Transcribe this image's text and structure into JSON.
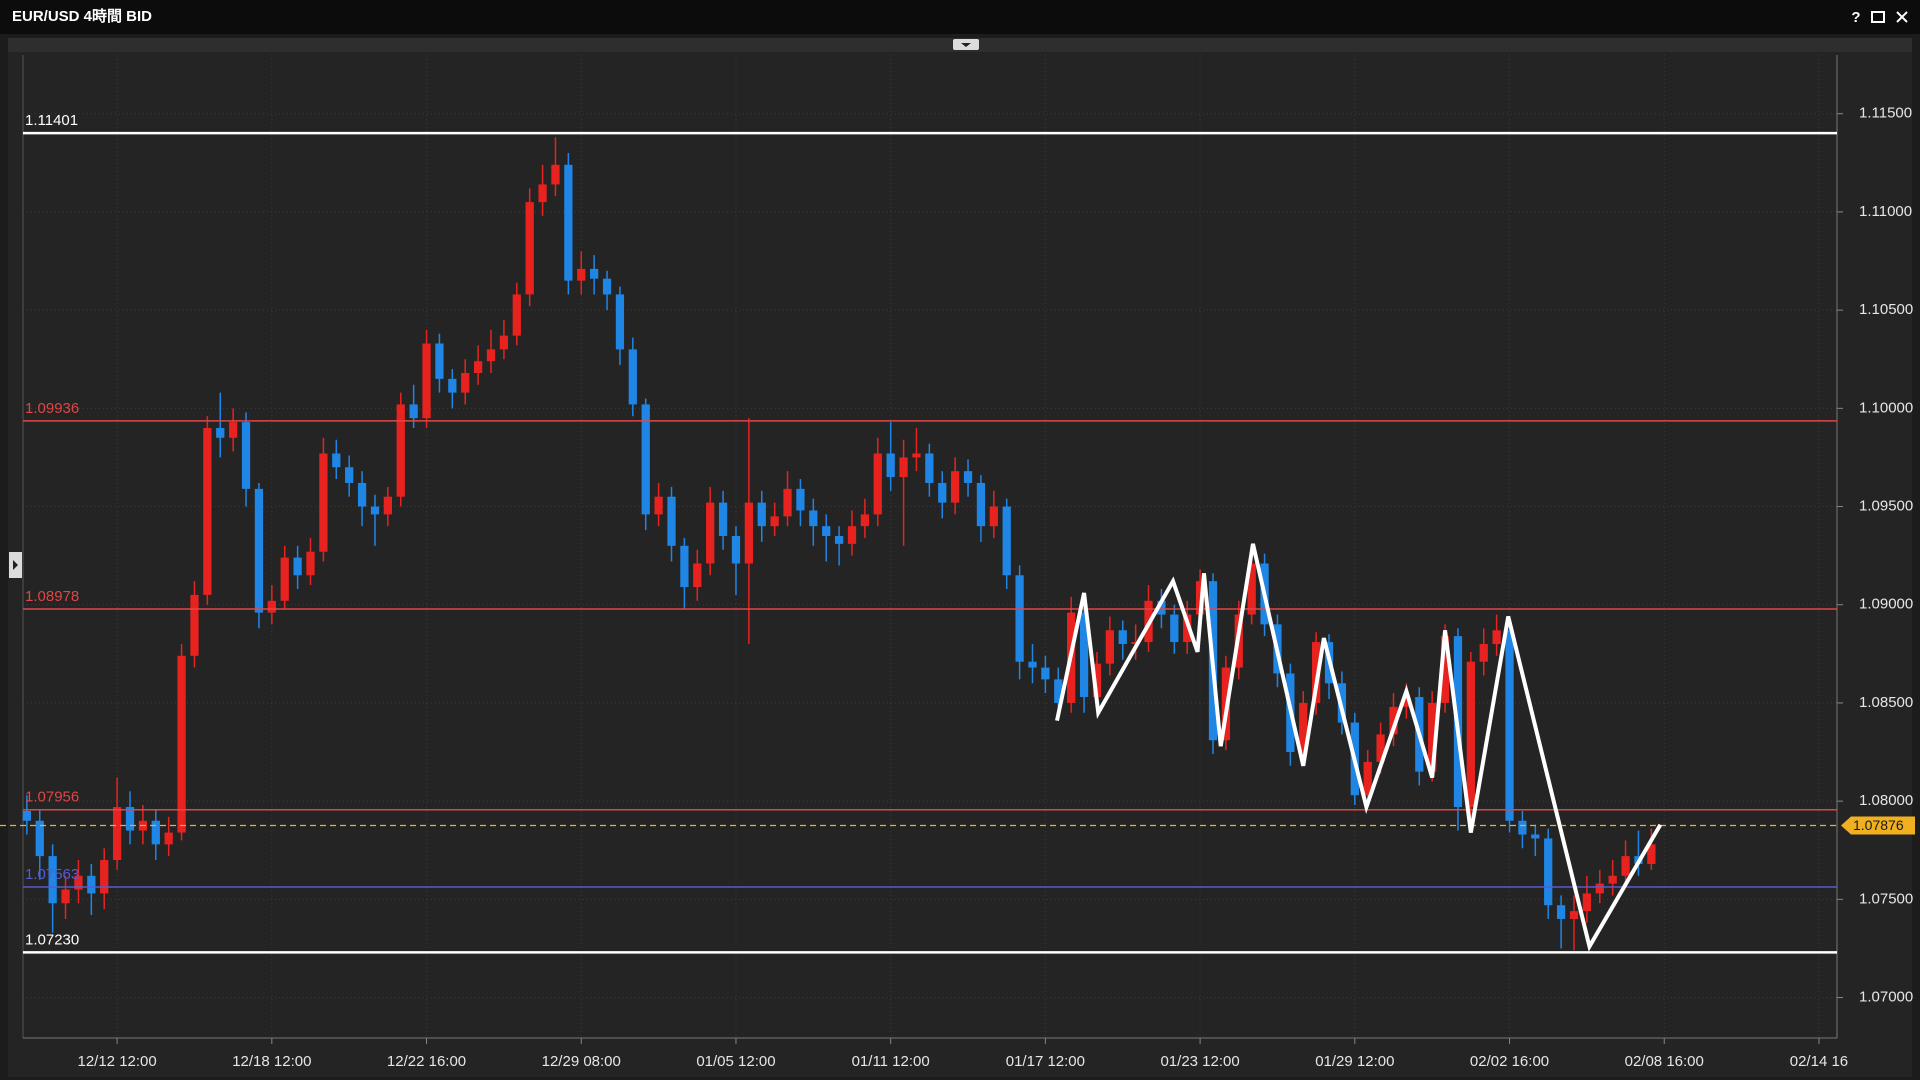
{
  "window": {
    "help": "?"
  },
  "chart_data": {
    "type": "candlestick",
    "title": "EUR/USD 4時間 BID",
    "up_color": "#e8231f",
    "down_color": "#1f86e6",
    "grid": true,
    "xlim": [
      -0.3,
      140.4
    ],
    "xticks": [
      {
        "value": 7,
        "label": "12/12 12:00"
      },
      {
        "value": 19,
        "label": "12/18 12:00"
      },
      {
        "value": 31,
        "label": "12/22 16:00"
      },
      {
        "value": 43,
        "label": "12/29 08:00"
      },
      {
        "value": 55,
        "label": "01/05 12:00"
      },
      {
        "value": 67,
        "label": "01/11 12:00"
      },
      {
        "value": 79,
        "label": "01/17 12:00"
      },
      {
        "value": 91,
        "label": "01/23 12:00"
      },
      {
        "value": 103,
        "label": "01/29 12:00"
      },
      {
        "value": 115,
        "label": "02/02 16:00"
      },
      {
        "value": 127,
        "label": "02/08 16:00"
      },
      {
        "value": 139,
        "label": "02/14 16"
      }
    ],
    "ylim": [
      1.06794,
      1.11799
    ],
    "yticks": [
      {
        "value": 1.07,
        "label": "1.07000"
      },
      {
        "value": 1.075,
        "label": "1.07500"
      },
      {
        "value": 1.08,
        "label": "1.08000"
      },
      {
        "value": 1.085,
        "label": "1.08500"
      },
      {
        "value": 1.09,
        "label": "1.09000"
      },
      {
        "value": 1.095,
        "label": "1.09500"
      },
      {
        "value": 1.1,
        "label": "1.10000"
      },
      {
        "value": 1.105,
        "label": "1.10500"
      },
      {
        "value": 1.11,
        "label": "1.11000"
      },
      {
        "value": 1.115,
        "label": "1.11500"
      }
    ],
    "levels": [
      {
        "value": 1.11401,
        "label": "1.11401",
        "color": "#ffffff"
      },
      {
        "value": 1.09936,
        "label": "1.09936",
        "color": "#e04646"
      },
      {
        "value": 1.08978,
        "label": "1.08978",
        "color": "#e04646"
      },
      {
        "value": 1.07956,
        "label": "1.07956",
        "color": "#e04646"
      },
      {
        "value": 1.07563,
        "label": "1.07563",
        "color": "#5a5ad2"
      },
      {
        "value": 1.0723,
        "label": "1.07230",
        "color": "#ffffff"
      }
    ],
    "current_price": {
      "value": 1.07876,
      "label": "1.07876",
      "color": "#f0b020"
    },
    "open": [
      1.0795,
      1.079,
      1.0772,
      1.0748,
      1.0755,
      1.0762,
      1.0753,
      1.077,
      1.0797,
      1.0785,
      1.079,
      1.0778,
      1.0784,
      1.0874,
      1.0905,
      1.099,
      1.0985,
      1.0993,
      1.0959,
      1.0896,
      1.0902,
      1.0924,
      1.0915,
      1.0927,
      1.0977,
      1.097,
      1.0962,
      1.095,
      1.0946,
      1.0955,
      1.1002,
      1.0995,
      1.1033,
      1.1015,
      1.1008,
      1.1018,
      1.1024,
      1.103,
      1.1037,
      1.1058,
      1.1105,
      1.1114,
      1.1124,
      1.1065,
      1.1071,
      1.1066,
      1.1058,
      1.103,
      1.1002,
      1.0946,
      1.0955,
      1.093,
      1.0909,
      1.0921,
      1.0952,
      1.0935,
      1.0921,
      1.0952,
      1.094,
      1.0945,
      1.0959,
      1.0948,
      1.094,
      1.0935,
      1.0931,
      1.094,
      1.0946,
      1.0977,
      1.0965,
      1.0975,
      1.0977,
      1.0962,
      1.0952,
      1.0968,
      1.0962,
      1.094,
      1.095,
      1.0915,
      1.0871,
      1.0868,
      1.0862,
      1.085,
      1.0896,
      1.0853,
      1.087,
      1.0887,
      1.088,
      1.0881,
      1.0902,
      1.0895,
      1.0881,
      1.0895,
      1.0912,
      1.0831,
      1.0868,
      1.0895,
      1.0921,
      1.089,
      1.0865,
      1.0825,
      1.085,
      1.0881,
      1.086,
      1.084,
      1.0803,
      1.082,
      1.0834,
      1.0848,
      1.0853,
      1.0815,
      1.085,
      1.0884,
      1.0797,
      1.0871,
      1.088,
      1.0887,
      1.079,
      1.0783,
      1.0781,
      1.0747,
      1.074,
      1.0744,
      1.0753,
      1.0758,
      1.0762,
      1.0772,
      1.0768
    ],
    "high": [
      1.0803,
      1.0796,
      1.0778,
      1.0762,
      1.077,
      1.0768,
      1.0776,
      1.0812,
      1.0805,
      1.0798,
      1.0796,
      1.0792,
      1.088,
      1.0912,
      1.0996,
      1.1008,
      1.1,
      1.0998,
      1.0962,
      1.091,
      1.093,
      1.093,
      1.0934,
      1.0985,
      1.0984,
      1.0976,
      1.0968,
      1.0956,
      1.096,
      1.1008,
      1.1012,
      1.104,
      1.1038,
      1.102,
      1.1025,
      1.1032,
      1.104,
      1.1045,
      1.1064,
      1.1112,
      1.1124,
      1.1138,
      1.113,
      1.108,
      1.1078,
      1.107,
      1.1062,
      1.1036,
      1.1005,
      1.0962,
      1.096,
      1.0934,
      1.0928,
      1.096,
      1.0958,
      1.094,
      1.0995,
      1.0958,
      1.0952,
      1.0968,
      1.0964,
      1.0954,
      1.0946,
      1.094,
      1.0948,
      1.0954,
      1.0985,
      1.0993,
      1.0984,
      1.099,
      1.0982,
      1.0968,
      1.0975,
      1.0974,
      1.0966,
      1.0958,
      1.0954,
      1.092,
      1.088,
      1.0874,
      1.0868,
      1.0904,
      1.09,
      1.0876,
      1.0894,
      1.0892,
      1.089,
      1.091,
      1.0908,
      1.09,
      1.0902,
      1.0918,
      1.0916,
      1.0874,
      1.0902,
      1.093,
      1.0926,
      1.0895,
      1.087,
      1.0856,
      1.0886,
      1.0885,
      1.0866,
      1.0845,
      1.0826,
      1.084,
      1.0855,
      1.086,
      1.0858,
      1.0856,
      1.089,
      1.0888,
      1.0876,
      1.0888,
      1.0895,
      1.0892,
      1.0795,
      1.0788,
      1.0786,
      1.0752,
      1.0752,
      1.0762,
      1.0765,
      1.077,
      1.078,
      1.0785,
      1.0786
    ],
    "low": [
      1.0783,
      1.076,
      1.0733,
      1.074,
      1.0748,
      1.0742,
      1.0745,
      1.0765,
      1.0778,
      1.0778,
      1.077,
      1.0772,
      1.078,
      1.0868,
      1.09,
      1.0975,
      1.0978,
      1.095,
      1.0888,
      1.089,
      1.0898,
      1.0908,
      1.091,
      1.0922,
      1.0964,
      1.0955,
      1.094,
      1.093,
      1.094,
      1.095,
      1.099,
      1.099,
      1.1008,
      1.1,
      1.1002,
      1.1012,
      1.1018,
      1.1025,
      1.1032,
      1.1052,
      1.1098,
      1.1108,
      1.1058,
      1.1058,
      1.1058,
      1.105,
      1.1022,
      1.0996,
      1.0938,
      1.094,
      1.0922,
      1.0898,
      1.0902,
      1.0915,
      1.0928,
      1.0905,
      1.088,
      1.0932,
      1.0935,
      1.094,
      1.094,
      1.093,
      1.0922,
      1.092,
      1.0925,
      1.0934,
      1.094,
      1.0958,
      1.093,
      1.0968,
      1.0955,
      1.0944,
      1.0946,
      1.0955,
      1.0932,
      1.0934,
      1.0908,
      1.0862,
      1.086,
      1.0855,
      1.0842,
      1.0845,
      1.0845,
      1.0848,
      1.0864,
      1.0872,
      1.0872,
      1.0876,
      1.0888,
      1.0875,
      1.0875,
      1.0888,
      1.0824,
      1.0826,
      1.0862,
      1.089,
      1.0884,
      1.0858,
      1.0818,
      1.082,
      1.0844,
      1.0852,
      1.0834,
      1.0798,
      1.0798,
      1.0814,
      1.0828,
      1.0842,
      1.0808,
      1.081,
      1.0845,
      1.0785,
      1.0792,
      1.0864,
      1.0874,
      1.0784,
      1.0776,
      1.0772,
      1.074,
      1.0725,
      1.0724,
      1.0738,
      1.0748,
      1.0752,
      1.0756,
      1.0762,
      1.0765
    ],
    "close": [
      1.079,
      1.0772,
      1.0748,
      1.0755,
      1.0762,
      1.0753,
      1.077,
      1.0797,
      1.0785,
      1.079,
      1.0778,
      1.0784,
      1.0874,
      1.0905,
      1.099,
      1.0985,
      1.0993,
      1.0959,
      1.0896,
      1.0902,
      1.0924,
      1.0915,
      1.0927,
      1.0977,
      1.097,
      1.0962,
      1.095,
      1.0946,
      1.0955,
      1.1002,
      1.0995,
      1.1033,
      1.1015,
      1.1008,
      1.1018,
      1.1024,
      1.103,
      1.1037,
      1.1058,
      1.1105,
      1.1114,
      1.1124,
      1.1065,
      1.1071,
      1.1066,
      1.1058,
      1.103,
      1.1002,
      1.0946,
      1.0955,
      1.093,
      1.0909,
      1.0921,
      1.0952,
      1.0935,
      1.0921,
      1.0952,
      1.094,
      1.0945,
      1.0959,
      1.0948,
      1.094,
      1.0935,
      1.0931,
      1.094,
      1.0946,
      1.0977,
      1.0965,
      1.0975,
      1.0977,
      1.0962,
      1.0952,
      1.0968,
      1.0962,
      1.094,
      1.095,
      1.0915,
      1.0871,
      1.0868,
      1.0862,
      1.085,
      1.0896,
      1.0853,
      1.087,
      1.0887,
      1.088,
      1.0881,
      1.0902,
      1.0895,
      1.0881,
      1.0895,
      1.0912,
      1.0831,
      1.0868,
      1.0895,
      1.0921,
      1.089,
      1.0865,
      1.0825,
      1.085,
      1.0881,
      1.086,
      1.084,
      1.0803,
      1.082,
      1.0834,
      1.0848,
      1.0853,
      1.0815,
      1.085,
      1.0884,
      1.0797,
      1.0871,
      1.088,
      1.0887,
      1.079,
      1.0783,
      1.0781,
      1.0747,
      1.074,
      1.0744,
      1.0753,
      1.0758,
      1.0762,
      1.0772,
      1.0768,
      1.0778
    ],
    "zigzag": {
      "color": "#ffffff",
      "x": [
        79.9,
        82,
        83.1,
        88.9,
        90.8,
        91.3,
        92.6,
        95.1,
        99,
        100.6,
        103.9,
        107,
        109,
        110,
        112,
        114.9,
        121.2,
        126.7
      ],
      "values": [
        1.0841,
        1.0906,
        1.0845,
        1.0912,
        1.0876,
        1.0916,
        1.0828,
        1.0931,
        1.0818,
        1.0883,
        1.0797,
        1.0856,
        1.0812,
        1.0887,
        1.0784,
        1.0894,
        1.0726,
        1.0788
      ]
    }
  }
}
